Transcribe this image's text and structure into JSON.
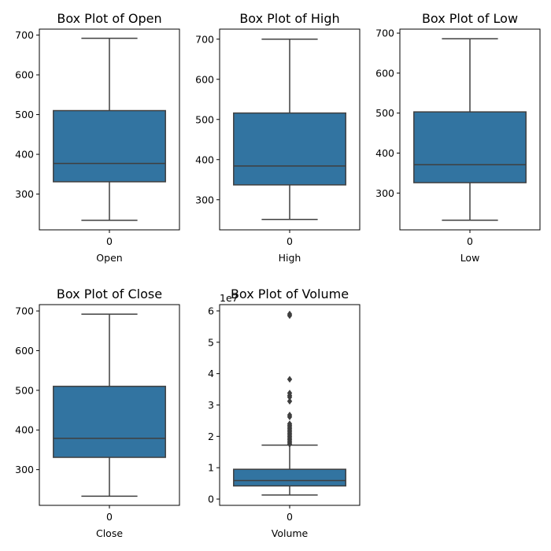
{
  "colors": {
    "box_fill": "#3274a1",
    "line": "#3f3f3f",
    "axes": "#000000",
    "background": "#ffffff"
  },
  "chart_data": [
    {
      "type": "box",
      "title": "Box Plot of Open",
      "xlabel": "Open",
      "category": "0",
      "ylim": [
        210,
        715
      ],
      "yticks": [
        300,
        400,
        500,
        600,
        700
      ],
      "ytick_labels": [
        "300",
        "400",
        "500",
        "600",
        "700"
      ],
      "offset_text": "",
      "stats": {
        "whisker_low": 234,
        "q1": 331,
        "median": 377,
        "q3": 510,
        "whisker_high": 692
      },
      "outliers": []
    },
    {
      "type": "box",
      "title": "Box Plot of High",
      "xlabel": "High",
      "category": "0",
      "ylim": [
        225,
        725
      ],
      "yticks": [
        300,
        400,
        500,
        600,
        700
      ],
      "ytick_labels": [
        "300",
        "400",
        "500",
        "600",
        "700"
      ],
      "offset_text": "",
      "stats": {
        "whisker_low": 251,
        "q1": 337,
        "median": 384,
        "q3": 516,
        "whisker_high": 700
      },
      "outliers": []
    },
    {
      "type": "box",
      "title": "Box Plot of Low",
      "xlabel": "Low",
      "category": "0",
      "ylim": [
        208,
        710
      ],
      "yticks": [
        300,
        400,
        500,
        600,
        700
      ],
      "ytick_labels": [
        "300",
        "400",
        "500",
        "600",
        "700"
      ],
      "offset_text": "",
      "stats": {
        "whisker_low": 232,
        "q1": 326,
        "median": 371,
        "q3": 503,
        "whisker_high": 686
      },
      "outliers": []
    },
    {
      "type": "box",
      "title": "Box Plot of Close",
      "xlabel": "Close",
      "category": "0",
      "ylim": [
        210,
        716
      ],
      "yticks": [
        300,
        400,
        500,
        600,
        700
      ],
      "ytick_labels": [
        "300",
        "400",
        "500",
        "600",
        "700"
      ],
      "offset_text": "",
      "stats": {
        "whisker_low": 233,
        "q1": 331,
        "median": 379,
        "q3": 510,
        "whisker_high": 692
      },
      "outliers": []
    },
    {
      "type": "box",
      "title": "Box Plot of Volume",
      "xlabel": "Volume",
      "category": "0",
      "ylim": [
        -0.2,
        6.2
      ],
      "yticks": [
        0,
        1,
        2,
        3,
        4,
        5,
        6
      ],
      "ytick_labels": [
        "0",
        "1",
        "2",
        "3",
        "4",
        "5",
        "6"
      ],
      "offset_text": "1e7",
      "stats": {
        "whisker_low": 0.13,
        "q1": 0.42,
        "median": 0.59,
        "q3": 0.95,
        "whisker_high": 1.72
      },
      "outliers": [
        1.75,
        1.8,
        1.85,
        1.9,
        1.95,
        2.0,
        2.05,
        2.1,
        2.15,
        2.2,
        2.25,
        2.3,
        2.35,
        2.4,
        2.62,
        2.68,
        3.12,
        3.25,
        3.3,
        3.38,
        3.82,
        5.85,
        5.9
      ]
    }
  ]
}
